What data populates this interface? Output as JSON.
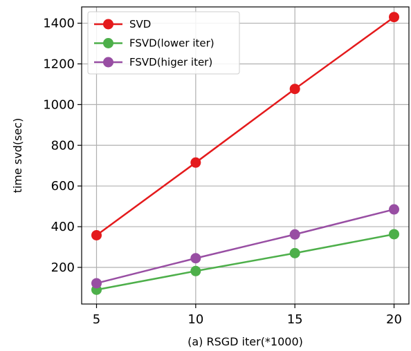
{
  "chart_data": {
    "type": "line",
    "title": "",
    "xlabel": "(a) RSGD iter(*1000)",
    "ylabel": "time svd(sec)",
    "x": [
      5,
      10,
      15,
      20
    ],
    "x_ticks": [
      "5",
      "10",
      "15",
      "20"
    ],
    "y_ticks": [
      "200",
      "400",
      "600",
      "800",
      "1000",
      "1200",
      "1400"
    ],
    "y_tick_values": [
      200,
      400,
      600,
      800,
      1000,
      1200,
      1400
    ],
    "xlim": [
      4.25,
      20.75
    ],
    "ylim": [
      20,
      1480
    ],
    "grid": true,
    "legend_position": "top-left",
    "series": [
      {
        "name": "SVD",
        "values": [
          358,
          715,
          1077,
          1430
        ],
        "color": "#e41a1c"
      },
      {
        "name": "FSVD(lower iter)",
        "values": [
          90,
          182,
          270,
          363
        ],
        "color": "#4daf4a"
      },
      {
        "name": "FSVD(higer iter)",
        "values": [
          122,
          245,
          362,
          485
        ],
        "color": "#984ea3"
      }
    ]
  }
}
